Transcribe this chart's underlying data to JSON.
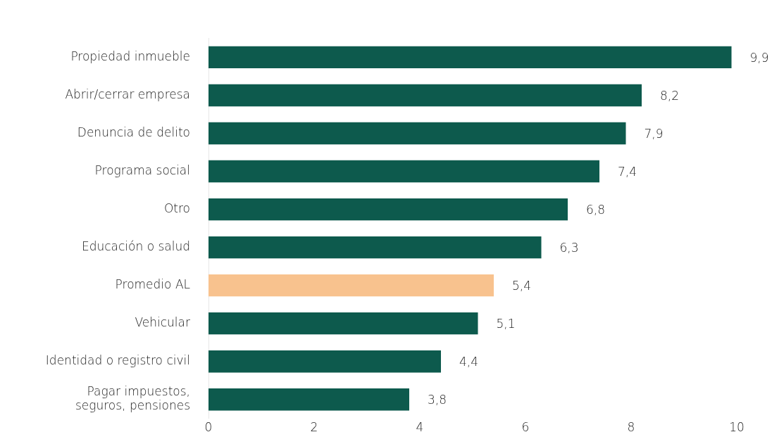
{
  "chart_data": {
    "type": "bar",
    "orientation": "horizontal",
    "categories": [
      "Propiedad inmueble",
      "Abrir/cerrar empresa",
      "Denuncia de delito",
      "Programa social",
      "Otro",
      "Educación o salud",
      "Promedio AL",
      "Vehicular",
      "Identidad o registro civil",
      "Pagar impuestos,\nseguros, pensiones"
    ],
    "values": [
      9.9,
      8.2,
      7.9,
      7.4,
      6.8,
      6.3,
      5.4,
      5.1,
      4.4,
      3.8
    ],
    "colors": [
      "#0d5a4d",
      "#0d5a4d",
      "#0d5a4d",
      "#0d5a4d",
      "#0d5a4d",
      "#0d5a4d",
      "#f8c28e",
      "#0d5a4d",
      "#0d5a4d",
      "#0d5a4d"
    ],
    "value_labels": [
      "9,9",
      "8,2",
      "7,9",
      "7,4",
      "6,8",
      "6,3",
      "5,4",
      "5,1",
      "4,4",
      "3,8"
    ],
    "xlim": [
      0,
      10
    ],
    "xticks": [
      0,
      2,
      4,
      6,
      8,
      10
    ],
    "grid": false,
    "legend": false
  }
}
